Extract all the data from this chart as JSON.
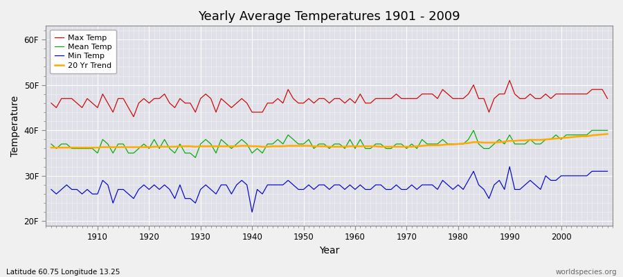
{
  "title": "Yearly Average Temperatures 1901 - 2009",
  "xlabel": "Year",
  "ylabel": "Temperature",
  "lat_lon_label": "Latitude 60.75 Longitude 13.25",
  "watermark": "worldspecies.org",
  "legend_labels": [
    "Max Temp",
    "Mean Temp",
    "Min Temp",
    "20 Yr Trend"
  ],
  "line_colors": [
    "#cc0000",
    "#00aa00",
    "#0000cc",
    "#ffaa00"
  ],
  "bg_color": "#f0f0f0",
  "plot_bg_color": "#e0e0e8",
  "yticks": [
    20,
    30,
    40,
    50,
    60
  ],
  "ytick_labels": [
    "20F",
    "30F",
    "40F",
    "50F",
    "60F"
  ],
  "ylim": [
    19,
    63
  ],
  "xlim": [
    1900,
    2010
  ],
  "xticks": [
    1910,
    1920,
    1930,
    1940,
    1950,
    1960,
    1970,
    1980,
    1990,
    2000
  ],
  "years": [
    1901,
    1902,
    1903,
    1904,
    1905,
    1906,
    1907,
    1908,
    1909,
    1910,
    1911,
    1912,
    1913,
    1914,
    1915,
    1916,
    1917,
    1918,
    1919,
    1920,
    1921,
    1922,
    1923,
    1924,
    1925,
    1926,
    1927,
    1928,
    1929,
    1930,
    1931,
    1932,
    1933,
    1934,
    1935,
    1936,
    1937,
    1938,
    1939,
    1940,
    1941,
    1942,
    1943,
    1944,
    1945,
    1946,
    1947,
    1948,
    1949,
    1950,
    1951,
    1952,
    1953,
    1954,
    1955,
    1956,
    1957,
    1958,
    1959,
    1960,
    1961,
    1962,
    1963,
    1964,
    1965,
    1966,
    1967,
    1968,
    1969,
    1970,
    1971,
    1972,
    1973,
    1974,
    1975,
    1976,
    1977,
    1978,
    1979,
    1980,
    1981,
    1982,
    1983,
    1984,
    1985,
    1986,
    1987,
    1988,
    1989,
    1990,
    1991,
    1992,
    1993,
    1994,
    1995,
    1996,
    1997,
    1998,
    1999,
    2000,
    2001,
    2002,
    2003,
    2004,
    2005,
    2006,
    2007,
    2008,
    2009
  ],
  "max_temp": [
    46,
    45,
    47,
    47,
    47,
    46,
    45,
    47,
    46,
    45,
    48,
    46,
    44,
    47,
    47,
    45,
    43,
    46,
    47,
    46,
    47,
    47,
    48,
    46,
    45,
    47,
    46,
    46,
    44,
    47,
    48,
    47,
    44,
    47,
    46,
    45,
    46,
    47,
    46,
    44,
    44,
    44,
    46,
    46,
    47,
    46,
    49,
    47,
    46,
    46,
    47,
    46,
    47,
    47,
    46,
    47,
    47,
    46,
    47,
    46,
    48,
    46,
    46,
    47,
    47,
    47,
    47,
    48,
    47,
    47,
    47,
    47,
    48,
    48,
    48,
    47,
    49,
    48,
    47,
    47,
    47,
    48,
    50,
    47,
    47,
    44,
    47,
    48,
    48,
    51,
    48,
    47,
    47,
    48,
    47,
    47,
    48,
    47,
    48,
    48,
    48,
    48,
    48,
    48,
    48,
    49,
    49,
    49,
    47
  ],
  "mean_temp": [
    37,
    36,
    37,
    37,
    36,
    36,
    36,
    36,
    36,
    35,
    38,
    37,
    35,
    37,
    37,
    35,
    35,
    36,
    37,
    36,
    38,
    36,
    38,
    36,
    35,
    37,
    35,
    35,
    34,
    37,
    38,
    37,
    35,
    38,
    37,
    36,
    37,
    38,
    37,
    35,
    36,
    35,
    37,
    37,
    38,
    37,
    39,
    38,
    37,
    37,
    38,
    36,
    37,
    37,
    36,
    37,
    37,
    36,
    38,
    36,
    38,
    36,
    36,
    37,
    37,
    36,
    36,
    37,
    37,
    36,
    37,
    36,
    38,
    37,
    37,
    37,
    38,
    37,
    37,
    37,
    37,
    38,
    40,
    37,
    36,
    36,
    37,
    38,
    37,
    39,
    37,
    37,
    37,
    38,
    37,
    37,
    38,
    38,
    39,
    38,
    39,
    39,
    39,
    39,
    39,
    40,
    40,
    40,
    40
  ],
  "min_temp": [
    27,
    26,
    27,
    28,
    27,
    27,
    26,
    27,
    26,
    26,
    29,
    28,
    24,
    27,
    27,
    26,
    25,
    27,
    28,
    27,
    28,
    27,
    28,
    27,
    25,
    28,
    25,
    25,
    24,
    27,
    28,
    27,
    26,
    28,
    28,
    26,
    28,
    29,
    28,
    22,
    27,
    26,
    28,
    28,
    28,
    28,
    29,
    28,
    27,
    27,
    28,
    27,
    28,
    28,
    27,
    28,
    28,
    27,
    28,
    27,
    28,
    27,
    27,
    28,
    28,
    27,
    27,
    28,
    27,
    27,
    28,
    27,
    28,
    28,
    28,
    27,
    29,
    28,
    27,
    28,
    27,
    29,
    31,
    28,
    27,
    25,
    28,
    29,
    27,
    32,
    27,
    27,
    28,
    29,
    28,
    27,
    30,
    29,
    29,
    30,
    30,
    30,
    30,
    30,
    30,
    31,
    31,
    31,
    31
  ],
  "trend": [
    36.2,
    36.2,
    36.2,
    36.2,
    36.2,
    36.2,
    36.2,
    36.2,
    36.2,
    36.2,
    36.3,
    36.3,
    36.3,
    36.3,
    36.3,
    36.3,
    36.3,
    36.3,
    36.3,
    36.3,
    36.4,
    36.4,
    36.4,
    36.4,
    36.4,
    36.5,
    36.5,
    36.5,
    36.4,
    36.5,
    36.5,
    36.5,
    36.5,
    36.5,
    36.5,
    36.5,
    36.5,
    36.6,
    36.6,
    36.5,
    36.5,
    36.4,
    36.4,
    36.5,
    36.5,
    36.5,
    36.6,
    36.6,
    36.6,
    36.6,
    36.6,
    36.5,
    36.5,
    36.5,
    36.4,
    36.4,
    36.4,
    36.4,
    36.5,
    36.5,
    36.5,
    36.5,
    36.5,
    36.5,
    36.4,
    36.4,
    36.4,
    36.4,
    36.4,
    36.4,
    36.4,
    36.5,
    36.6,
    36.7,
    36.7,
    36.7,
    36.8,
    36.9,
    36.9,
    37.0,
    37.1,
    37.2,
    37.4,
    37.4,
    37.3,
    37.3,
    37.3,
    37.4,
    37.5,
    37.7,
    37.7,
    37.8,
    37.8,
    37.9,
    37.9,
    37.9,
    38.0,
    38.1,
    38.2,
    38.3,
    38.4,
    38.5,
    38.6,
    38.7,
    38.7,
    38.9,
    39.0,
    39.1,
    39.2
  ]
}
